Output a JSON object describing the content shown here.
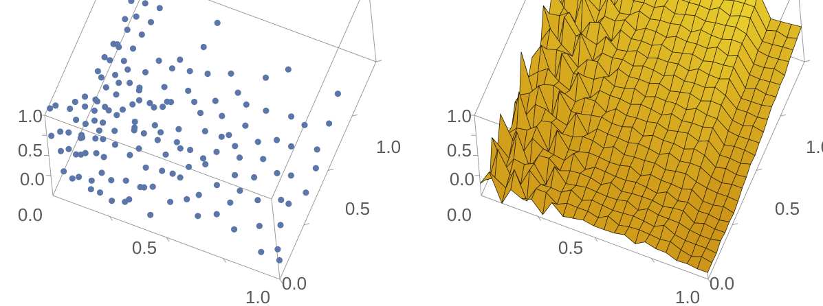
{
  "chart_data": [
    {
      "type": "scatter3d",
      "title": "",
      "xlabel": "",
      "ylabel": "",
      "zlabel": "",
      "xlim": [
        0,
        1
      ],
      "ylim": [
        0,
        1
      ],
      "zlim": [
        0,
        1
      ],
      "x_ticks": [
        "0.5",
        "1.0"
      ],
      "y_ticks": [
        "0.0",
        "0.5",
        "1.0"
      ],
      "z_ticks": [
        "0.0",
        "0.5",
        "1.0"
      ],
      "base_tick": "0.0",
      "point_color": "#5b76a8",
      "boxed": true,
      "points": [
        [
          0.0,
          0.05,
          0.95
        ],
        [
          0.0,
          0.1,
          0.85
        ],
        [
          0.01,
          0.02,
          0.7
        ],
        [
          0.02,
          0.08,
          0.6
        ],
        [
          0.01,
          0.2,
          0.55
        ],
        [
          0.03,
          0.05,
          0.45
        ],
        [
          0.02,
          0.15,
          0.4
        ],
        [
          0.04,
          0.1,
          0.35
        ],
        [
          0.01,
          0.25,
          0.5
        ],
        [
          0.03,
          0.3,
          0.45
        ],
        [
          0.05,
          0.02,
          0.3
        ],
        [
          0.06,
          0.12,
          0.25
        ],
        [
          0.04,
          0.22,
          0.2
        ],
        [
          0.07,
          0.05,
          0.15
        ],
        [
          0.05,
          0.35,
          0.3
        ],
        [
          0.08,
          0.15,
          0.4
        ],
        [
          0.09,
          0.25,
          0.35
        ],
        [
          0.1,
          0.05,
          0.2
        ],
        [
          0.06,
          0.4,
          0.45
        ],
        [
          0.08,
          0.45,
          0.55
        ],
        [
          0.1,
          0.5,
          0.6
        ],
        [
          0.12,
          0.55,
          0.7
        ],
        [
          0.14,
          0.6,
          0.75
        ],
        [
          0.16,
          0.65,
          0.8
        ],
        [
          0.18,
          0.7,
          0.85
        ],
        [
          0.11,
          0.2,
          0.1
        ],
        [
          0.13,
          0.1,
          0.05
        ],
        [
          0.15,
          0.3,
          0.15
        ],
        [
          0.17,
          0.15,
          0.25
        ],
        [
          0.19,
          0.05,
          0.1
        ],
        [
          0.12,
          0.4,
          0.3
        ],
        [
          0.14,
          0.35,
          0.2
        ],
        [
          0.16,
          0.45,
          0.35
        ],
        [
          0.2,
          0.2,
          0.3
        ],
        [
          0.22,
          0.1,
          0.15
        ],
        [
          0.24,
          0.3,
          0.25
        ],
        [
          0.21,
          0.5,
          0.4
        ],
        [
          0.23,
          0.4,
          0.5
        ],
        [
          0.25,
          0.55,
          0.45
        ],
        [
          0.26,
          0.15,
          0.05
        ],
        [
          0.28,
          0.25,
          0.2
        ],
        [
          0.3,
          0.05,
          0.1
        ],
        [
          0.27,
          0.4,
          0.35
        ],
        [
          0.29,
          0.5,
          0.3
        ],
        [
          0.31,
          0.35,
          0.25
        ],
        [
          0.33,
          0.2,
          0.15
        ],
        [
          0.35,
          0.1,
          0.2
        ],
        [
          0.32,
          0.6,
          0.4
        ],
        [
          0.34,
          0.45,
          0.3
        ],
        [
          0.36,
          0.3,
          0.35
        ],
        [
          0.38,
          0.15,
          0.1
        ],
        [
          0.4,
          0.25,
          0.25
        ],
        [
          0.37,
          0.55,
          0.2
        ],
        [
          0.39,
          0.4,
          0.15
        ],
        [
          0.41,
          0.05,
          0.05
        ],
        [
          0.43,
          0.3,
          0.3
        ],
        [
          0.45,
          0.2,
          0.2
        ],
        [
          0.42,
          0.5,
          0.25
        ],
        [
          0.44,
          0.6,
          0.35
        ],
        [
          0.46,
          0.35,
          0.1
        ],
        [
          0.48,
          0.1,
          0.15
        ],
        [
          0.5,
          0.25,
          0.2
        ],
        [
          0.47,
          0.45,
          0.3
        ],
        [
          0.49,
          0.55,
          0.2
        ],
        [
          0.51,
          0.4,
          0.25
        ],
        [
          0.53,
          0.15,
          0.1
        ],
        [
          0.55,
          0.3,
          0.15
        ],
        [
          0.52,
          0.65,
          0.3
        ],
        [
          0.54,
          0.5,
          0.2
        ],
        [
          0.56,
          0.2,
          0.05
        ],
        [
          0.58,
          0.35,
          0.2
        ],
        [
          0.6,
          0.1,
          0.1
        ],
        [
          0.57,
          0.6,
          0.25
        ],
        [
          0.59,
          0.45,
          0.15
        ],
        [
          0.62,
          0.25,
          0.1
        ],
        [
          0.64,
          0.4,
          0.2
        ],
        [
          0.66,
          0.15,
          0.05
        ],
        [
          0.63,
          0.55,
          0.3
        ],
        [
          0.65,
          0.7,
          0.25
        ],
        [
          0.68,
          0.3,
          0.15
        ],
        [
          0.7,
          0.2,
          0.1
        ],
        [
          0.72,
          0.45,
          0.2
        ],
        [
          0.69,
          0.6,
          0.15
        ],
        [
          0.74,
          0.35,
          0.05
        ],
        [
          0.76,
          0.1,
          0.1
        ],
        [
          0.78,
          0.5,
          0.15
        ],
        [
          0.73,
          0.75,
          0.3
        ],
        [
          0.8,
          0.25,
          0.1
        ],
        [
          0.82,
          0.4,
          0.05
        ],
        [
          0.85,
          0.15,
          0.1
        ],
        [
          0.88,
          0.3,
          0.05
        ],
        [
          0.9,
          0.05,
          0.1
        ],
        [
          0.86,
          0.6,
          0.15
        ],
        [
          0.92,
          0.2,
          0.05
        ],
        [
          0.95,
          0.1,
          0.05
        ],
        [
          0.98,
          0.05,
          0.08
        ],
        [
          0.97,
          0.35,
          0.1
        ],
        [
          1.0,
          0.4,
          0.3
        ],
        [
          1.0,
          0.55,
          0.45
        ],
        [
          1.0,
          0.65,
          0.55
        ],
        [
          0.02,
          0.45,
          0.35
        ],
        [
          0.03,
          0.5,
          0.4
        ],
        [
          0.05,
          0.55,
          0.45
        ],
        [
          0.04,
          0.6,
          0.3
        ],
        [
          0.06,
          0.65,
          0.5
        ],
        [
          0.07,
          0.7,
          0.6
        ],
        [
          0.09,
          0.75,
          0.55
        ],
        [
          0.05,
          0.8,
          0.65
        ],
        [
          0.08,
          0.85,
          0.7
        ],
        [
          0.03,
          0.9,
          0.75
        ],
        [
          0.1,
          0.3,
          0.2
        ],
        [
          0.12,
          0.25,
          0.15
        ],
        [
          0.09,
          0.35,
          0.25
        ],
        [
          0.11,
          0.45,
          0.3
        ],
        [
          0.13,
          0.5,
          0.35
        ],
        [
          0.15,
          0.05,
          0.1
        ],
        [
          0.17,
          0.35,
          0.3
        ],
        [
          0.19,
          0.4,
          0.25
        ],
        [
          0.18,
          0.1,
          0.2
        ],
        [
          0.2,
          0.45,
          0.3
        ],
        [
          0.22,
          0.35,
          0.2
        ],
        [
          0.24,
          0.05,
          0.05
        ],
        [
          0.26,
          0.45,
          0.15
        ],
        [
          0.28,
          0.6,
          0.25
        ],
        [
          0.3,
          0.45,
          0.2
        ],
        [
          0.32,
          0.05,
          0.15
        ],
        [
          0.34,
          0.15,
          0.05
        ],
        [
          0.36,
          0.6,
          0.3
        ],
        [
          0.38,
          0.7,
          0.35
        ],
        [
          0.4,
          0.8,
          0.4
        ],
        [
          0.02,
          0.3,
          0.1
        ],
        [
          0.04,
          0.35,
          0.15
        ],
        [
          0.06,
          0.2,
          0.05
        ],
        [
          0.08,
          0.3,
          0.08
        ],
        [
          0.03,
          0.4,
          0.12
        ],
        [
          0.05,
          0.45,
          0.18
        ],
        [
          0.07,
          0.5,
          0.22
        ],
        [
          0.09,
          0.55,
          0.28
        ],
        [
          0.11,
          0.6,
          0.32
        ],
        [
          0.13,
          0.65,
          0.38
        ],
        [
          0.15,
          0.7,
          0.42
        ],
        [
          0.17,
          0.75,
          0.48
        ],
        [
          0.19,
          0.8,
          0.52
        ],
        [
          0.21,
          0.85,
          0.58
        ],
        [
          0.06,
          0.15,
          0.6
        ],
        [
          0.08,
          0.2,
          0.65
        ],
        [
          0.1,
          0.1,
          0.55
        ],
        [
          0.12,
          0.05,
          0.5
        ],
        [
          0.14,
          0.15,
          0.45
        ],
        [
          0.16,
          0.25,
          0.55
        ],
        [
          0.25,
          0.35,
          0.5
        ],
        [
          0.27,
          0.25,
          0.45
        ],
        [
          0.29,
          0.15,
          0.4
        ],
        [
          0.31,
          0.25,
          0.42
        ],
        [
          0.35,
          0.4,
          0.45
        ],
        [
          0.37,
          0.25,
          0.4
        ],
        [
          0.43,
          0.15,
          0.35
        ],
        [
          0.47,
          0.25,
          0.4
        ],
        [
          0.51,
          0.15,
          0.35
        ],
        [
          0.57,
          0.25,
          0.38
        ],
        [
          0.61,
          0.35,
          0.42
        ],
        [
          0.67,
          0.45,
          0.35
        ],
        [
          0.71,
          0.3,
          0.4
        ],
        [
          0.75,
          0.2,
          0.3
        ],
        [
          0.79,
          0.35,
          0.33
        ],
        [
          0.83,
          0.55,
          0.36
        ],
        [
          0.87,
          0.45,
          0.3
        ],
        [
          0.91,
          0.35,
          0.25
        ],
        [
          0.94,
          0.25,
          0.2
        ],
        [
          0.96,
          0.5,
          0.22
        ]
      ]
    },
    {
      "type": "surface3d",
      "title": "",
      "xlabel": "",
      "ylabel": "",
      "zlabel": "",
      "xlim": [
        0,
        1
      ],
      "ylim": [
        0,
        1
      ],
      "zlim": [
        0,
        1
      ],
      "x_ticks": [
        "0.5",
        "1.0"
      ],
      "y_ticks": [
        "0.0",
        "0.5",
        "1.0"
      ],
      "z_ticks": [
        "0.0",
        "0.5",
        "1.0"
      ],
      "base_tick": "0.0",
      "surface_color": "#f5a623",
      "mesh": true,
      "boxed": true
    }
  ]
}
